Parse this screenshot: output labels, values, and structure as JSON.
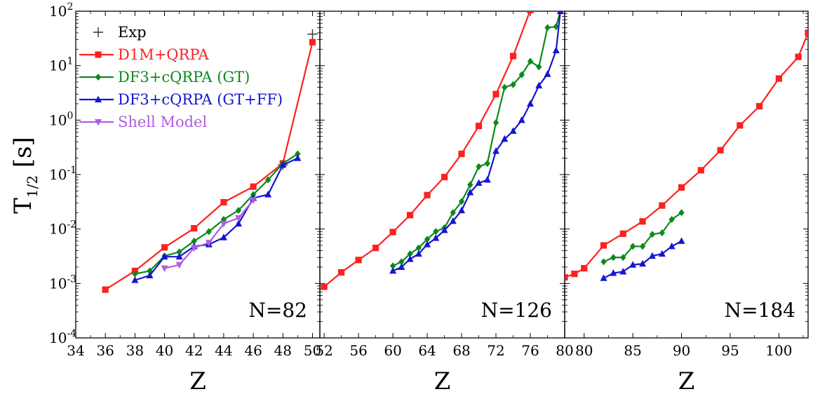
{
  "chart_data": {
    "type": "line",
    "y_scale": "log",
    "ylim": [
      0.0001,
      100
    ],
    "yticks": [
      {
        "value": 0.0001,
        "base": "10",
        "exp": "-4"
      },
      {
        "value": 0.001,
        "base": "10",
        "exp": "-3"
      },
      {
        "value": 0.01,
        "base": "10",
        "exp": "-2"
      },
      {
        "value": 0.1,
        "base": "10",
        "exp": "-1"
      },
      {
        "value": 1,
        "base": "10",
        "exp": "0"
      },
      {
        "value": 10,
        "base": "10",
        "exp": "1"
      },
      {
        "value": 100,
        "base": "10",
        "exp": "2"
      }
    ],
    "ylabel": {
      "main": "T",
      "sub": "1/2",
      "unit": "[s]"
    },
    "xlabel": "Z",
    "legend": {
      "placement": "top-left",
      "entries": [
        {
          "label": "Exp",
          "color": "#333333",
          "marker": "plus"
        },
        {
          "label": "D1M+QRPA",
          "color": "#ff2020",
          "marker": "square"
        },
        {
          "label": "DF3+cQRPA (GT)",
          "color": "#0a8a1a",
          "marker": "diamond"
        },
        {
          "label": "DF3+cQRPA (GT+FF)",
          "color": "#1515d0",
          "marker": "triangle-up"
        },
        {
          "label": "Shell Model",
          "color": "#b05ce0",
          "marker": "triangle-down"
        }
      ]
    },
    "panels": [
      {
        "label": "N=82",
        "xlim": [
          34,
          50.5
        ],
        "xticks": [
          34,
          36,
          38,
          40,
          42,
          44,
          46,
          48,
          50
        ],
        "series": [
          {
            "name": "Exp",
            "color": "#333333",
            "marker": "plus",
            "line": false,
            "x": [
              48,
              50
            ],
            "y": [
              0.15,
              38
            ]
          },
          {
            "name": "D1M+QRPA",
            "color": "#ff2020",
            "marker": "square",
            "line": true,
            "x": [
              36,
              38,
              40,
              42,
              44,
              46,
              48,
              50
            ],
            "y": [
              0.00077,
              0.0017,
              0.0046,
              0.0103,
              0.031,
              0.06,
              0.16,
              27
            ]
          },
          {
            "name": "DF3+cQRPA (GT)",
            "color": "#0a8a1a",
            "marker": "diamond",
            "line": true,
            "x": [
              38,
              39,
              40,
              41,
              42,
              43,
              44,
              45,
              46,
              47,
              48,
              49
            ],
            "y": [
              0.0015,
              0.0017,
              0.0032,
              0.0038,
              0.006,
              0.009,
              0.015,
              0.022,
              0.043,
              0.08,
              0.16,
              0.24
            ]
          },
          {
            "name": "DF3+cQRPA (GT+FF)",
            "color": "#1515d0",
            "marker": "triangle-up",
            "line": true,
            "x": [
              38,
              39,
              40,
              41,
              42,
              43,
              44,
              45,
              46,
              47,
              48,
              49
            ],
            "y": [
              0.00115,
              0.0014,
              0.0031,
              0.0031,
              0.0048,
              0.0052,
              0.007,
              0.0125,
              0.037,
              0.043,
              0.15,
              0.2
            ]
          },
          {
            "name": "Shell Model",
            "color": "#b05ce0",
            "marker": "triangle-down",
            "line": true,
            "x": [
              40,
              41,
              42,
              43,
              44,
              45,
              46
            ],
            "y": [
              0.0019,
              0.0022,
              0.0045,
              0.0056,
              0.0125,
              0.016,
              0.034
            ]
          }
        ]
      },
      {
        "label": "N=126",
        "xlim": [
          51.5,
          80
        ],
        "xticks": [
          52,
          56,
          60,
          64,
          68,
          72,
          76,
          80
        ],
        "series": [
          {
            "name": "D1M+QRPA",
            "color": "#ff2020",
            "marker": "square",
            "line": true,
            "x": [
              52,
              54,
              56,
              58,
              60,
              62,
              64,
              66,
              68,
              70,
              72,
              74,
              76
            ],
            "y": [
              0.00087,
              0.0016,
              0.0027,
              0.0045,
              0.0088,
              0.018,
              0.042,
              0.09,
              0.24,
              0.78,
              3.0,
              15,
              105
            ]
          },
          {
            "name": "DF3+cQRPA (GT)",
            "color": "#0a8a1a",
            "marker": "diamond",
            "line": true,
            "x": [
              60,
              61,
              62,
              63,
              64,
              65,
              66,
              67,
              68,
              69,
              70,
              71,
              72,
              73,
              74,
              75,
              76,
              77,
              78,
              79,
              79.5
            ],
            "y": [
              0.0021,
              0.0025,
              0.0035,
              0.0045,
              0.0065,
              0.009,
              0.0105,
              0.02,
              0.032,
              0.065,
              0.14,
              0.16,
              0.9,
              4.0,
              4.5,
              6.8,
              12,
              9.5,
              50,
              52,
              100
            ]
          },
          {
            "name": "DF3+cQRPA (GT+FF)",
            "color": "#1515d0",
            "marker": "triangle-up",
            "line": true,
            "x": [
              60,
              61,
              62,
              63,
              64,
              65,
              66,
              67,
              68,
              69,
              70,
              71,
              72,
              73,
              74,
              75,
              76,
              77,
              78,
              79,
              79.5
            ],
            "y": [
              0.0017,
              0.002,
              0.0028,
              0.0035,
              0.0052,
              0.0068,
              0.0095,
              0.014,
              0.022,
              0.047,
              0.07,
              0.08,
              0.27,
              0.45,
              0.63,
              1.0,
              2.0,
              4.3,
              7.0,
              19,
              100
            ]
          }
        ]
      },
      {
        "label": "N=184",
        "xlim": [
          78,
          103
        ],
        "xticks": [
          80,
          85,
          90,
          95,
          100
        ],
        "series": [
          {
            "name": "D1M+QRPA",
            "color": "#ff2020",
            "marker": "square",
            "line": true,
            "x": [
              78,
              79,
              80,
              82,
              84,
              86,
              88,
              90,
              92,
              94,
              96,
              98,
              100,
              102,
              103
            ],
            "y": [
              0.0013,
              0.0015,
              0.0019,
              0.005,
              0.0082,
              0.0138,
              0.027,
              0.058,
              0.12,
              0.28,
              0.8,
              1.8,
              5.8,
              14.5,
              40
            ]
          },
          {
            "name": "DF3+cQRPA (GT)",
            "color": "#0a8a1a",
            "marker": "diamond",
            "line": true,
            "x": [
              82,
              83,
              84,
              85,
              86,
              87,
              88,
              89,
              90
            ],
            "y": [
              0.0025,
              0.003,
              0.003,
              0.0048,
              0.0048,
              0.008,
              0.0085,
              0.015,
              0.02
            ]
          },
          {
            "name": "DF3+cQRPA (GT+FF)",
            "color": "#1515d0",
            "marker": "triangle-up",
            "line": true,
            "x": [
              82,
              83,
              84,
              85,
              86,
              87,
              88,
              89,
              90
            ],
            "y": [
              0.00125,
              0.00155,
              0.00165,
              0.0022,
              0.0023,
              0.0032,
              0.0035,
              0.0048,
              0.006
            ]
          }
        ]
      }
    ]
  }
}
